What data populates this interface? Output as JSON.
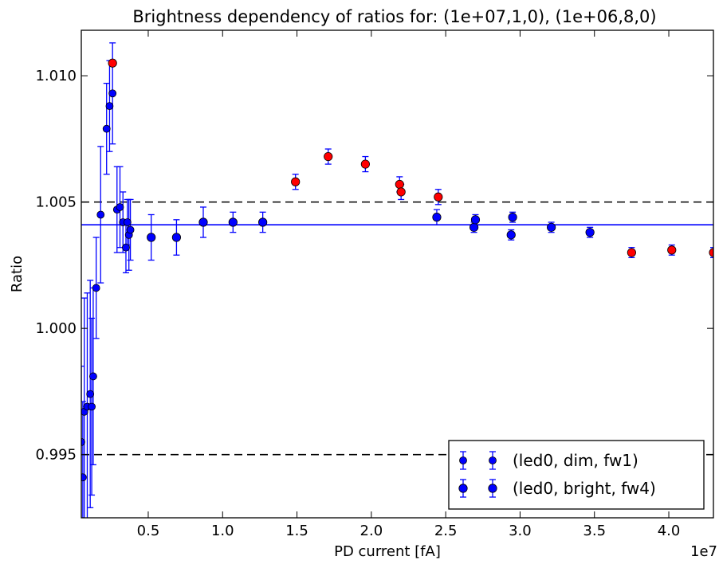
{
  "chart_data": {
    "type": "scatter",
    "title": "Brightness dependency of ratios for: (1e+07,1,0), (1e+06,8,0)",
    "xlabel": "PD current [fA]",
    "ylabel": "Ratio",
    "x_offset_label": "1e7",
    "xlim": [
      0.05,
      4.3
    ],
    "ylim": [
      0.9925,
      1.0118
    ],
    "x_ticks": [
      0.5,
      1.0,
      1.5,
      2.0,
      2.5,
      3.0,
      3.5,
      4.0
    ],
    "x_tick_labels": [
      "0.5",
      "1.0",
      "1.5",
      "2.0",
      "2.5",
      "3.0",
      "3.5",
      "4.0"
    ],
    "y_ticks": [
      0.995,
      1.0,
      1.005,
      1.01
    ],
    "y_tick_labels": [
      "0.995",
      "1.000",
      "1.005",
      "1.010"
    ],
    "hlines": [
      {
        "y": 1.005,
        "style": "dashed",
        "color": "#000000"
      },
      {
        "y": 0.995,
        "style": "dashed",
        "color": "#000000"
      },
      {
        "y": 1.0041,
        "style": "solid",
        "color": "#0000ff"
      }
    ],
    "legend_position": "bottom-right",
    "series": [
      {
        "name": "(led0, dim, fw1)",
        "color": "#0000ff",
        "marker_size": "small",
        "points": [
          {
            "x": 0.05,
            "y": 0.9955,
            "err": 0.003
          },
          {
            "x": 0.06,
            "y": 0.9941,
            "err": 0.003
          },
          {
            "x": 0.07,
            "y": 0.9967,
            "err": 0.0045
          },
          {
            "x": 0.09,
            "y": 0.9969,
            "err": 0.0045
          },
          {
            "x": 0.11,
            "y": 0.9974,
            "err": 0.0045
          },
          {
            "x": 0.12,
            "y": 0.9969,
            "err": 0.0035
          },
          {
            "x": 0.13,
            "y": 0.9981,
            "err": 0.0035
          },
          {
            "x": 0.15,
            "y": 1.0016,
            "err": 0.002
          },
          {
            "x": 0.18,
            "y": 1.0045,
            "err": 0.0027
          },
          {
            "x": 0.22,
            "y": 1.0079,
            "err": 0.0018
          },
          {
            "x": 0.24,
            "y": 1.0088,
            "err": 0.0018
          },
          {
            "x": 0.26,
            "y": 1.0093,
            "err": 0.002
          },
          {
            "x": 0.29,
            "y": 1.0047,
            "err": 0.0017
          },
          {
            "x": 0.31,
            "y": 1.0048,
            "err": 0.0016
          },
          {
            "x": 0.33,
            "y": 1.0042,
            "err": 0.0012
          },
          {
            "x": 0.35,
            "y": 1.0032,
            "err": 0.001
          },
          {
            "x": 0.36,
            "y": 1.0042,
            "err": 0.0009
          },
          {
            "x": 0.37,
            "y": 1.0037,
            "err": 0.0014
          },
          {
            "x": 0.38,
            "y": 1.0039,
            "err": 0.0012
          }
        ]
      },
      {
        "name": "(led0, bright, fw4)",
        "color": "#0000ff",
        "marker_size": "large",
        "points": [
          {
            "x": 0.52,
            "y": 1.0036,
            "err": 0.0009
          },
          {
            "x": 0.69,
            "y": 1.0036,
            "err": 0.0007
          },
          {
            "x": 0.87,
            "y": 1.0042,
            "err": 0.0006
          },
          {
            "x": 1.07,
            "y": 1.0042,
            "err": 0.0004
          },
          {
            "x": 1.27,
            "y": 1.0042,
            "err": 0.0004
          },
          {
            "x": 2.44,
            "y": 1.0044,
            "err": 0.0003
          },
          {
            "x": 2.69,
            "y": 1.004,
            "err": 0.0002
          },
          {
            "x": 2.7,
            "y": 1.0043,
            "err": 0.0002
          },
          {
            "x": 2.94,
            "y": 1.0037,
            "err": 0.0002
          },
          {
            "x": 2.95,
            "y": 1.0044,
            "err": 0.0002
          },
          {
            "x": 3.21,
            "y": 1.004,
            "err": 0.0002
          },
          {
            "x": 3.47,
            "y": 1.0038,
            "err": 0.0002
          }
        ]
      },
      {
        "color": "#ff0000",
        "marker_size": "large",
        "points": [
          {
            "x": 0.26,
            "y": 1.0105
          },
          {
            "x": 1.49,
            "y": 1.0058,
            "err": 0.0003
          },
          {
            "x": 1.71,
            "y": 1.0068,
            "err": 0.0003
          },
          {
            "x": 1.96,
            "y": 1.0065,
            "err": 0.0003
          },
          {
            "x": 2.19,
            "y": 1.0057,
            "err": 0.0003
          },
          {
            "x": 2.2,
            "y": 1.0054,
            "err": 0.0003
          },
          {
            "x": 2.45,
            "y": 1.0052,
            "err": 0.0003
          },
          {
            "x": 3.75,
            "y": 1.003,
            "err": 0.0002
          },
          {
            "x": 4.02,
            "y": 1.0031,
            "err": 0.0002
          },
          {
            "x": 4.3,
            "y": 1.003,
            "err": 0.0002
          }
        ]
      }
    ]
  }
}
